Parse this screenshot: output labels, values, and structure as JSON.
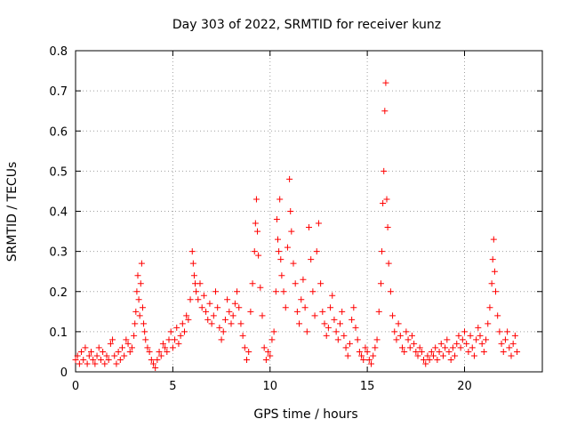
{
  "chart_data": {
    "type": "scatter",
    "title": "Day 303 of 2022, SRMTID for receiver kunz",
    "xlabel": "GPS time / hours",
    "ylabel": "SRMTID / TECUs",
    "xlim": [
      0,
      24
    ],
    "ylim": [
      0,
      0.8
    ],
    "x_ticks": [
      0,
      5,
      10,
      15,
      20
    ],
    "x_tick_labels": [
      "0",
      "5",
      "10",
      "15",
      "20"
    ],
    "y_ticks": [
      0,
      0.1,
      0.2,
      0.3,
      0.4,
      0.5,
      0.6,
      0.7,
      0.8
    ],
    "y_tick_labels": [
      "0",
      "0.1",
      "0.2",
      "0.3",
      "0.4",
      "0.5",
      "0.6",
      "0.7",
      "0.8"
    ],
    "grid": true,
    "marker": "+",
    "series": [
      {
        "name": "SRMTID",
        "color": "#ff0000",
        "points": [
          [
            0.0,
            0.03
          ],
          [
            0.1,
            0.04
          ],
          [
            0.2,
            0.02
          ],
          [
            0.3,
            0.05
          ],
          [
            0.4,
            0.03
          ],
          [
            0.5,
            0.06
          ],
          [
            0.6,
            0.02
          ],
          [
            0.7,
            0.04
          ],
          [
            0.8,
            0.05
          ],
          [
            0.9,
            0.03
          ],
          [
            1.0,
            0.02
          ],
          [
            1.1,
            0.04
          ],
          [
            1.2,
            0.06
          ],
          [
            1.3,
            0.03
          ],
          [
            1.4,
            0.05
          ],
          [
            1.5,
            0.02
          ],
          [
            1.6,
            0.04
          ],
          [
            1.7,
            0.03
          ],
          [
            1.8,
            0.07
          ],
          [
            1.9,
            0.08
          ],
          [
            2.0,
            0.04
          ],
          [
            2.1,
            0.02
          ],
          [
            2.2,
            0.05
          ],
          [
            2.3,
            0.03
          ],
          [
            2.4,
            0.06
          ],
          [
            2.5,
            0.04
          ],
          [
            2.6,
            0.08
          ],
          [
            2.7,
            0.07
          ],
          [
            2.8,
            0.05
          ],
          [
            2.9,
            0.06
          ],
          [
            3.0,
            0.09
          ],
          [
            3.05,
            0.12
          ],
          [
            3.1,
            0.15
          ],
          [
            3.15,
            0.2
          ],
          [
            3.2,
            0.24
          ],
          [
            3.25,
            0.18
          ],
          [
            3.3,
            0.14
          ],
          [
            3.35,
            0.22
          ],
          [
            3.4,
            0.27
          ],
          [
            3.45,
            0.16
          ],
          [
            3.5,
            0.12
          ],
          [
            3.55,
            0.1
          ],
          [
            3.6,
            0.08
          ],
          [
            3.7,
            0.06
          ],
          [
            3.8,
            0.05
          ],
          [
            3.9,
            0.03
          ],
          [
            4.0,
            0.02
          ],
          [
            4.1,
            0.01
          ],
          [
            4.2,
            0.03
          ],
          [
            4.3,
            0.05
          ],
          [
            4.4,
            0.04
          ],
          [
            4.5,
            0.07
          ],
          [
            4.6,
            0.06
          ],
          [
            4.7,
            0.05
          ],
          [
            4.8,
            0.08
          ],
          [
            4.9,
            0.1
          ],
          [
            5.0,
            0.06
          ],
          [
            5.1,
            0.08
          ],
          [
            5.2,
            0.11
          ],
          [
            5.3,
            0.07
          ],
          [
            5.4,
            0.09
          ],
          [
            5.5,
            0.12
          ],
          [
            5.6,
            0.1
          ],
          [
            5.7,
            0.14
          ],
          [
            5.8,
            0.13
          ],
          [
            5.9,
            0.18
          ],
          [
            6.0,
            0.3
          ],
          [
            6.05,
            0.27
          ],
          [
            6.1,
            0.24
          ],
          [
            6.15,
            0.22
          ],
          [
            6.2,
            0.2
          ],
          [
            6.3,
            0.18
          ],
          [
            6.4,
            0.22
          ],
          [
            6.5,
            0.16
          ],
          [
            6.6,
            0.19
          ],
          [
            6.7,
            0.15
          ],
          [
            6.8,
            0.13
          ],
          [
            6.9,
            0.17
          ],
          [
            7.0,
            0.12
          ],
          [
            7.1,
            0.14
          ],
          [
            7.2,
            0.2
          ],
          [
            7.3,
            0.16
          ],
          [
            7.4,
            0.11
          ],
          [
            7.5,
            0.08
          ],
          [
            7.6,
            0.1
          ],
          [
            7.7,
            0.13
          ],
          [
            7.8,
            0.18
          ],
          [
            7.9,
            0.15
          ],
          [
            8.0,
            0.12
          ],
          [
            8.1,
            0.14
          ],
          [
            8.2,
            0.17
          ],
          [
            8.3,
            0.2
          ],
          [
            8.4,
            0.16
          ],
          [
            8.5,
            0.12
          ],
          [
            8.6,
            0.09
          ],
          [
            8.7,
            0.06
          ],
          [
            8.8,
            0.03
          ],
          [
            8.9,
            0.05
          ],
          [
            9.0,
            0.15
          ],
          [
            9.1,
            0.22
          ],
          [
            9.2,
            0.3
          ],
          [
            9.25,
            0.37
          ],
          [
            9.3,
            0.43
          ],
          [
            9.35,
            0.35
          ],
          [
            9.4,
            0.29
          ],
          [
            9.5,
            0.21
          ],
          [
            9.6,
            0.14
          ],
          [
            9.7,
            0.06
          ],
          [
            9.8,
            0.03
          ],
          [
            9.9,
            0.05
          ],
          [
            10.0,
            0.04
          ],
          [
            10.1,
            0.08
          ],
          [
            10.2,
            0.1
          ],
          [
            10.3,
            0.2
          ],
          [
            10.35,
            0.38
          ],
          [
            10.4,
            0.33
          ],
          [
            10.45,
            0.3
          ],
          [
            10.5,
            0.43
          ],
          [
            10.55,
            0.28
          ],
          [
            10.6,
            0.24
          ],
          [
            10.7,
            0.2
          ],
          [
            10.8,
            0.16
          ],
          [
            10.9,
            0.31
          ],
          [
            11.0,
            0.48
          ],
          [
            11.05,
            0.4
          ],
          [
            11.1,
            0.35
          ],
          [
            11.2,
            0.27
          ],
          [
            11.3,
            0.22
          ],
          [
            11.4,
            0.15
          ],
          [
            11.5,
            0.12
          ],
          [
            11.6,
            0.18
          ],
          [
            11.7,
            0.23
          ],
          [
            11.8,
            0.16
          ],
          [
            11.9,
            0.1
          ],
          [
            12.0,
            0.36
          ],
          [
            12.1,
            0.28
          ],
          [
            12.2,
            0.2
          ],
          [
            12.3,
            0.14
          ],
          [
            12.4,
            0.3
          ],
          [
            12.5,
            0.37
          ],
          [
            12.6,
            0.22
          ],
          [
            12.7,
            0.15
          ],
          [
            12.8,
            0.12
          ],
          [
            12.9,
            0.09
          ],
          [
            13.0,
            0.11
          ],
          [
            13.1,
            0.16
          ],
          [
            13.2,
            0.19
          ],
          [
            13.3,
            0.13
          ],
          [
            13.4,
            0.1
          ],
          [
            13.5,
            0.08
          ],
          [
            13.6,
            0.12
          ],
          [
            13.7,
            0.15
          ],
          [
            13.8,
            0.09
          ],
          [
            13.9,
            0.06
          ],
          [
            14.0,
            0.04
          ],
          [
            14.1,
            0.07
          ],
          [
            14.2,
            0.13
          ],
          [
            14.3,
            0.16
          ],
          [
            14.4,
            0.11
          ],
          [
            14.5,
            0.08
          ],
          [
            14.6,
            0.05
          ],
          [
            14.7,
            0.04
          ],
          [
            14.8,
            0.03
          ],
          [
            14.9,
            0.06
          ],
          [
            15.0,
            0.05
          ],
          [
            15.1,
            0.03
          ],
          [
            15.2,
            0.02
          ],
          [
            15.3,
            0.04
          ],
          [
            15.4,
            0.06
          ],
          [
            15.5,
            0.08
          ],
          [
            15.6,
            0.15
          ],
          [
            15.7,
            0.22
          ],
          [
            15.75,
            0.3
          ],
          [
            15.8,
            0.42
          ],
          [
            15.85,
            0.5
          ],
          [
            15.9,
            0.65
          ],
          [
            15.95,
            0.72
          ],
          [
            16.0,
            0.43
          ],
          [
            16.05,
            0.36
          ],
          [
            16.1,
            0.27
          ],
          [
            16.2,
            0.2
          ],
          [
            16.3,
            0.14
          ],
          [
            16.4,
            0.1
          ],
          [
            16.5,
            0.08
          ],
          [
            16.6,
            0.12
          ],
          [
            16.7,
            0.09
          ],
          [
            16.8,
            0.06
          ],
          [
            16.9,
            0.05
          ],
          [
            17.0,
            0.1
          ],
          [
            17.1,
            0.08
          ],
          [
            17.2,
            0.06
          ],
          [
            17.3,
            0.09
          ],
          [
            17.4,
            0.07
          ],
          [
            17.5,
            0.05
          ],
          [
            17.6,
            0.04
          ],
          [
            17.7,
            0.06
          ],
          [
            17.8,
            0.05
          ],
          [
            17.9,
            0.03
          ],
          [
            18.0,
            0.02
          ],
          [
            18.1,
            0.04
          ],
          [
            18.2,
            0.03
          ],
          [
            18.3,
            0.05
          ],
          [
            18.4,
            0.04
          ],
          [
            18.5,
            0.06
          ],
          [
            18.6,
            0.03
          ],
          [
            18.7,
            0.05
          ],
          [
            18.8,
            0.07
          ],
          [
            18.9,
            0.04
          ],
          [
            19.0,
            0.06
          ],
          [
            19.1,
            0.08
          ],
          [
            19.2,
            0.05
          ],
          [
            19.3,
            0.03
          ],
          [
            19.4,
            0.06
          ],
          [
            19.5,
            0.04
          ],
          [
            19.6,
            0.07
          ],
          [
            19.7,
            0.09
          ],
          [
            19.8,
            0.06
          ],
          [
            19.9,
            0.08
          ],
          [
            20.0,
            0.1
          ],
          [
            20.1,
            0.07
          ],
          [
            20.2,
            0.05
          ],
          [
            20.3,
            0.09
          ],
          [
            20.4,
            0.06
          ],
          [
            20.5,
            0.04
          ],
          [
            20.6,
            0.08
          ],
          [
            20.7,
            0.11
          ],
          [
            20.8,
            0.09
          ],
          [
            20.9,
            0.07
          ],
          [
            21.0,
            0.05
          ],
          [
            21.1,
            0.08
          ],
          [
            21.2,
            0.12
          ],
          [
            21.3,
            0.16
          ],
          [
            21.4,
            0.22
          ],
          [
            21.45,
            0.28
          ],
          [
            21.5,
            0.33
          ],
          [
            21.55,
            0.25
          ],
          [
            21.6,
            0.2
          ],
          [
            21.7,
            0.14
          ],
          [
            21.8,
            0.1
          ],
          [
            21.9,
            0.07
          ],
          [
            22.0,
            0.05
          ],
          [
            22.1,
            0.08
          ],
          [
            22.2,
            0.1
          ],
          [
            22.3,
            0.06
          ],
          [
            22.4,
            0.04
          ],
          [
            22.5,
            0.07
          ],
          [
            22.6,
            0.09
          ],
          [
            22.7,
            0.05
          ]
        ]
      }
    ]
  }
}
